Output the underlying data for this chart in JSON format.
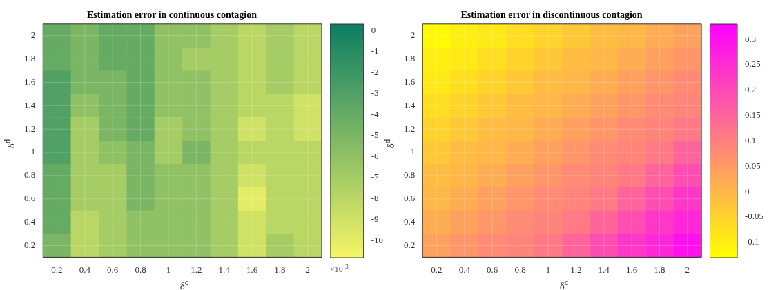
{
  "chart_data": [
    {
      "type": "heatmap",
      "title": "Estimation error in continuous contagion",
      "xlabel": "δ$^{c}$",
      "ylabel": "δ$^{d}$",
      "categories": [
        "0.2",
        "0.4",
        "0.6",
        "0.8",
        "1",
        "1.2",
        "1.4",
        "1.6",
        "1.8",
        "2"
      ],
      "y_categories": [
        "2",
        "1.8",
        "1.6",
        "1.4",
        "1.2",
        "1",
        "0.8",
        "0.6",
        "0.4",
        "0.2"
      ],
      "cells": [
        [
          -4,
          -5,
          -4,
          -4,
          -6,
          -6,
          -7,
          -8,
          -7,
          -8
        ],
        [
          -4,
          -5,
          -4,
          -4,
          -6,
          -7,
          -7,
          -8,
          -7,
          -8
        ],
        [
          -3,
          -5,
          -5,
          -4,
          -6,
          -6,
          -7,
          -8,
          -7,
          -8
        ],
        [
          -3,
          -6,
          -5,
          -4,
          -6,
          -6,
          -7,
          -8,
          -8,
          -9
        ],
        [
          -3,
          -7,
          -5,
          -4,
          -7,
          -6,
          -7,
          -9,
          -8,
          -9
        ],
        [
          -3,
          -7,
          -6,
          -5,
          -7,
          -5,
          -7,
          -8,
          -8,
          -8
        ],
        [
          -4,
          -7,
          -7,
          -5,
          -6,
          -6,
          -7,
          -9,
          -8,
          -8
        ],
        [
          -4,
          -7,
          -7,
          -5,
          -6,
          -6,
          -7,
          -10,
          -8,
          -8
        ],
        [
          -4,
          -8,
          -7,
          -6,
          -6,
          -6,
          -7,
          -9,
          -8,
          -8
        ],
        [
          -5,
          -8,
          -7,
          -6,
          -6,
          -6,
          -7,
          -9,
          -7,
          -8
        ]
      ],
      "clim": [
        -10.8,
        0.3
      ],
      "cticks": [
        0,
        -1,
        -2,
        -3,
        -4,
        -5,
        -6,
        -7,
        -8,
        -9,
        -10
      ],
      "colors": [
        "#f5f566",
        "#0c7d63"
      ],
      "grid": true,
      "annotations": [
        "×10$^{-3}$"
      ]
    },
    {
      "type": "heatmap",
      "title": "Estimation error in discontinuous contagion",
      "xlabel": "δ$^{c}$",
      "ylabel": "δ$^{d}$",
      "categories": [
        "0.2",
        "0.4",
        "0.6",
        "0.8",
        "1",
        "1.2",
        "1.4",
        "1.6",
        "1.8",
        "2"
      ],
      "y_categories": [
        "2",
        "1.8",
        "1.6",
        "1.4",
        "1.2",
        "1",
        "0.8",
        "0.6",
        "0.4",
        "0.2"
      ],
      "cells": [
        [
          -0.12,
          -0.1,
          -0.09,
          -0.07,
          -0.05,
          -0.03,
          -0.01,
          0.0,
          0.02,
          0.04
        ],
        [
          -0.1,
          -0.09,
          -0.07,
          -0.05,
          -0.03,
          -0.01,
          0.0,
          0.02,
          0.04,
          0.06
        ],
        [
          -0.09,
          -0.07,
          -0.05,
          -0.03,
          -0.01,
          0.0,
          0.02,
          0.04,
          0.06,
          0.08
        ],
        [
          -0.07,
          -0.05,
          -0.03,
          -0.01,
          0.0,
          0.02,
          0.04,
          0.06,
          0.08,
          0.09
        ],
        [
          -0.05,
          -0.03,
          -0.01,
          0.0,
          0.02,
          0.04,
          0.06,
          0.08,
          0.09,
          0.11
        ],
        [
          -0.03,
          -0.01,
          0.0,
          0.02,
          0.04,
          0.06,
          0.08,
          0.09,
          0.11,
          0.15
        ],
        [
          -0.01,
          0.0,
          0.02,
          0.04,
          0.06,
          0.08,
          0.09,
          0.11,
          0.15,
          0.19
        ],
        [
          0.0,
          0.02,
          0.04,
          0.06,
          0.08,
          0.09,
          0.11,
          0.15,
          0.19,
          0.23
        ],
        [
          0.02,
          0.04,
          0.06,
          0.08,
          0.09,
          0.11,
          0.15,
          0.19,
          0.23,
          0.26
        ],
        [
          0.04,
          0.06,
          0.08,
          0.09,
          0.11,
          0.15,
          0.19,
          0.23,
          0.26,
          0.3
        ]
      ],
      "clim": [
        -0.13,
        0.33
      ],
      "cticks": [
        -0.1,
        -0.05,
        0,
        0.05,
        0.1,
        0.15,
        0.2,
        0.25,
        0.3
      ],
      "colors": [
        "#ffff00",
        "#ff00ff"
      ],
      "grid": true
    }
  ]
}
